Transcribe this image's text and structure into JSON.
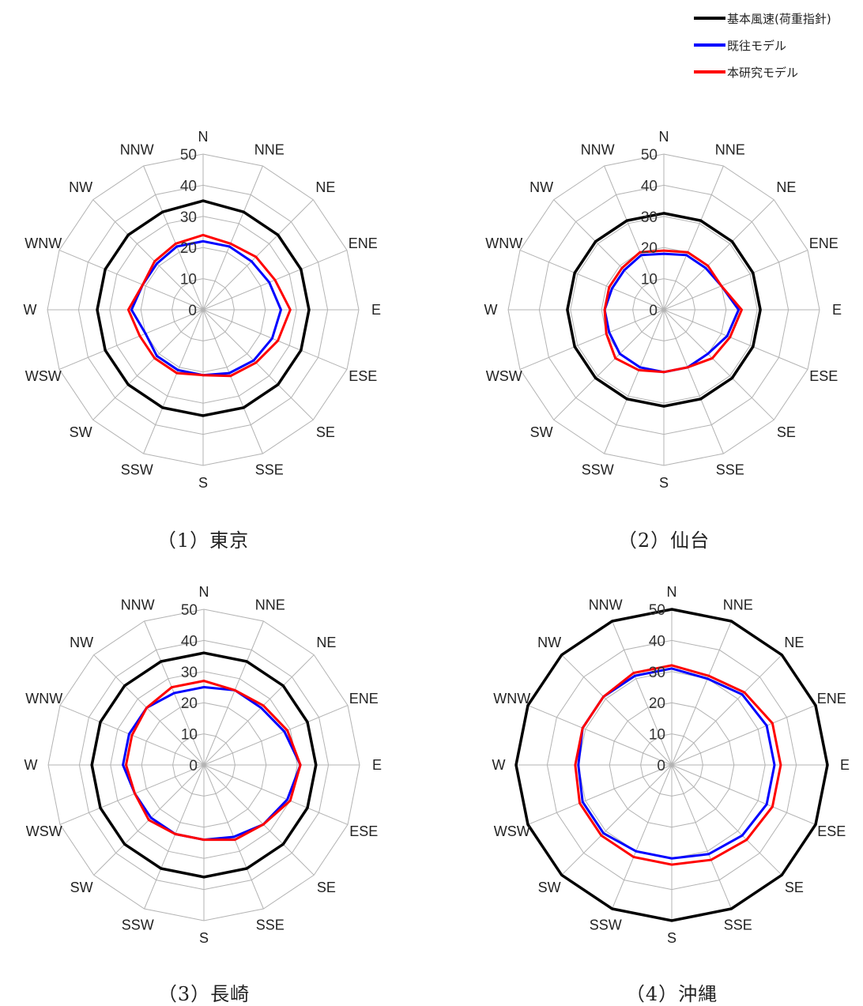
{
  "legend": [
    {
      "label": "基本風速(荷重指針)",
      "color": "#000000"
    },
    {
      "label": "既往モデル",
      "color": "#0000ff"
    },
    {
      "label": "本研究モデル",
      "color": "#ff0000"
    }
  ],
  "chart_data": [
    {
      "type": "radar",
      "caption": "（1）東京",
      "categories": [
        "N",
        "NNE",
        "NE",
        "ENE",
        "E",
        "ESE",
        "SE",
        "SSE",
        "S",
        "SSW",
        "SW",
        "WSW",
        "W",
        "WNW",
        "NW",
        "NNW"
      ],
      "ticks": [
        0,
        10,
        20,
        30,
        40,
        50
      ],
      "rlim": [
        0,
        50
      ],
      "series": [
        {
          "name": "基本風速(荷重指針)",
          "color": "#000000",
          "values": [
            35,
            34,
            34,
            34,
            34,
            34,
            34,
            34,
            34,
            34,
            34,
            34,
            34,
            34,
            34,
            34
          ]
        },
        {
          "name": "既往モデル",
          "color": "#0000ff",
          "values": [
            22,
            22,
            22,
            23,
            25,
            24,
            23,
            22,
            21,
            21,
            21,
            20,
            23,
            21,
            21,
            22
          ]
        },
        {
          "name": "本研究モデル",
          "color": "#ff0000",
          "values": [
            24,
            23,
            24,
            25,
            28,
            26,
            24,
            23,
            21,
            22,
            22,
            22,
            24,
            21,
            22,
            23
          ]
        }
      ]
    },
    {
      "type": "radar",
      "caption": "（2）仙台",
      "categories": [
        "N",
        "NNE",
        "NE",
        "ENE",
        "E",
        "ESE",
        "SE",
        "SSE",
        "S",
        "SSW",
        "SW",
        "WSW",
        "W",
        "WNW",
        "NW",
        "NNW"
      ],
      "ticks": [
        0,
        10,
        20,
        30,
        40,
        50
      ],
      "rlim": [
        0,
        50
      ],
      "series": [
        {
          "name": "基本風速(荷重指針)",
          "color": "#000000",
          "values": [
            31,
            31,
            31,
            31,
            31,
            31,
            31,
            31,
            31,
            31,
            31,
            31,
            31,
            31,
            31,
            31
          ]
        },
        {
          "name": "既往モデル",
          "color": "#0000ff",
          "values": [
            18,
            19,
            19,
            20,
            24,
            22,
            20,
            20,
            20,
            20,
            20,
            19,
            19,
            18,
            18,
            19
          ]
        },
        {
          "name": "本研究モデル",
          "color": "#ff0000",
          "values": [
            19,
            20,
            20,
            20,
            25,
            23,
            22,
            20,
            20,
            21,
            22,
            20,
            19,
            19,
            19,
            20
          ]
        }
      ]
    },
    {
      "type": "radar",
      "caption": "（3）長崎",
      "categories": [
        "N",
        "NNE",
        "NE",
        "ENE",
        "E",
        "ESE",
        "SE",
        "SSE",
        "S",
        "SSW",
        "SW",
        "WSW",
        "W",
        "WNW",
        "NW",
        "NNW"
      ],
      "ticks": [
        0,
        10,
        20,
        30,
        40,
        50
      ],
      "rlim": [
        0,
        50
      ],
      "series": [
        {
          "name": "基本風速(荷重指針)",
          "color": "#000000",
          "values": [
            36,
            36,
            36,
            36,
            36,
            36,
            36,
            36,
            36,
            36,
            36,
            36,
            36,
            36,
            36,
            36
          ]
        },
        {
          "name": "既往モデル",
          "color": "#0000ff",
          "values": [
            25,
            26,
            26,
            28,
            31,
            29,
            27,
            25,
            24,
            24,
            24,
            24,
            26,
            26,
            26,
            25
          ]
        },
        {
          "name": "本研究モデル",
          "color": "#ff0000",
          "values": [
            27,
            26,
            27,
            29,
            31,
            30,
            27,
            26,
            24,
            24,
            25,
            24,
            25,
            25,
            26,
            27
          ]
        }
      ]
    },
    {
      "type": "radar",
      "caption": "（4）沖縄",
      "categories": [
        "N",
        "NNE",
        "NE",
        "ENE",
        "E",
        "ESE",
        "SE",
        "SSE",
        "S",
        "SSW",
        "SW",
        "WSW",
        "W",
        "WNW",
        "NW",
        "NNW"
      ],
      "ticks": [
        0,
        10,
        20,
        30,
        40,
        50
      ],
      "rlim": [
        0,
        50
      ],
      "series": [
        {
          "name": "基本風速(荷重指針)",
          "color": "#000000",
          "values": [
            50,
            50,
            50,
            50,
            50,
            50,
            50,
            50,
            50,
            50,
            50,
            50,
            50,
            50,
            50,
            50
          ]
        },
        {
          "name": "既往モデル",
          "color": "#0000ff",
          "values": [
            31,
            30,
            32,
            33,
            33,
            33,
            32,
            31,
            30,
            30,
            31,
            31,
            30,
            31,
            31,
            31
          ]
        },
        {
          "name": "本研究モデル",
          "color": "#ff0000",
          "values": [
            32,
            31,
            33,
            35,
            35,
            35,
            34,
            33,
            32,
            32,
            32,
            32,
            31,
            31,
            31,
            32
          ]
        }
      ]
    }
  ]
}
